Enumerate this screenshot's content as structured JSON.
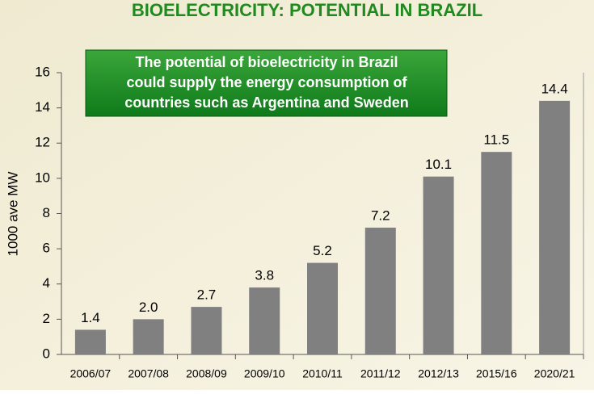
{
  "chart_data": {
    "type": "bar",
    "title": "BIOELECTRICITY: POTENTIAL IN BRAZIL",
    "annotation": [
      "The potential of bioelectricity in Brazil",
      "could supply the energy consumption of",
      "countries such as Argentina and Sweden"
    ],
    "y_label": "1000 ave MW",
    "categories": [
      "2006/07",
      "2007/08",
      "2008/09",
      "2009/10",
      "2010/11",
      "2011/12",
      "2012/13",
      "2015/16",
      "2020/21"
    ],
    "values": [
      1.4,
      2.0,
      2.7,
      3.8,
      5.2,
      7.2,
      10.1,
      11.5,
      14.4
    ],
    "value_labels": [
      "1.4",
      "2.0",
      "2.7",
      "3.8",
      "5.2",
      "7.2",
      "10.1",
      "11.5",
      "14.4"
    ],
    "color": "#808080",
    "ylim": [
      0,
      16
    ],
    "yticks": [
      0,
      2,
      4,
      6,
      8,
      10,
      12,
      14,
      16
    ],
    "grid": false
  }
}
